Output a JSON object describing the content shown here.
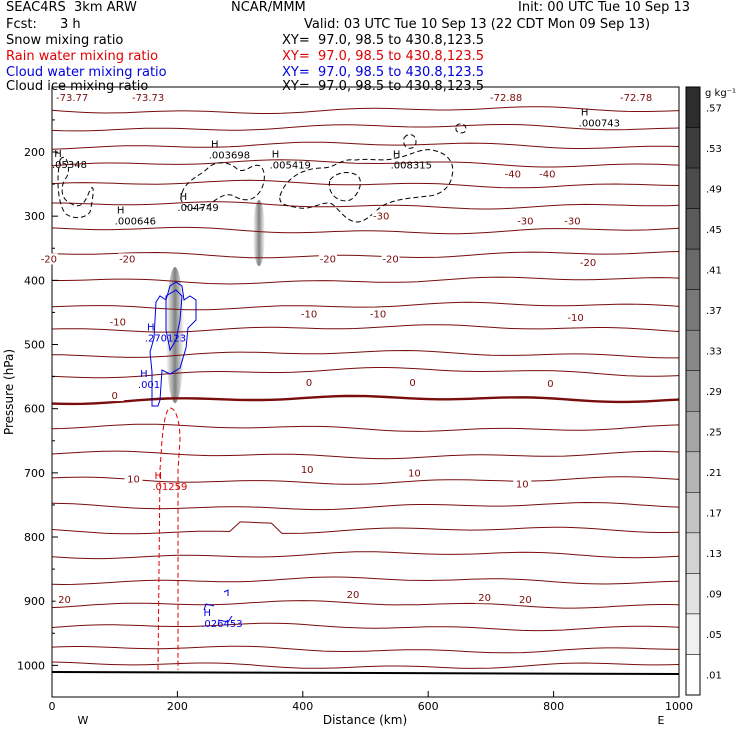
{
  "header": {
    "model": "SEAC4RS  3km ARW",
    "org": "NCAR/MMM",
    "init": "Init: 00 UTC Tue 10 Sep 13",
    "fcst_label": "Fcst:",
    "fcst_value": "3 h",
    "valid": "Valid: 03 UTC Tue 10 Sep 13 (22 CDT Mon 09 Sep 13)"
  },
  "fields": [
    {
      "name": "Snow mixing ratio",
      "xy": "XY=  97.0, 98.5 to 430.8,123.5",
      "color": "#000000"
    },
    {
      "name": "Rain water mixing ratio",
      "xy": "XY=  97.0, 98.5 to 430.8,123.5",
      "color": "#e00000"
    },
    {
      "name": "Cloud water mixing ratio",
      "xy": "XY=  97.0, 98.5 to 430.8,123.5",
      "color": "#0000e0"
    },
    {
      "name": "Cloud ice mixing ratio",
      "xy": "XY=  97.0, 98.5 to 430.8,123.5",
      "color": "#000000"
    }
  ],
  "colors": {
    "temperature": "#7a0c0c",
    "rain": "#e00000",
    "cloud_water": "#0000e0",
    "snow": "#000000"
  },
  "chart_data": {
    "type": "cross-section",
    "xlabel": "Distance (km)",
    "ylabel": "Pressure (hPa)",
    "x_ticks": [
      0,
      200,
      400,
      600,
      800,
      1000
    ],
    "y_ticks": [
      200,
      300,
      400,
      500,
      600,
      700,
      800,
      900,
      1000
    ],
    "xlim": [
      0,
      1000
    ],
    "ylim": [
      1020,
      100
    ],
    "edge_labels": {
      "west": "W",
      "east": "E"
    },
    "colorbar": {
      "unit": "g kg⁻¹",
      "ticks": [
        ".57",
        ".53",
        ".49",
        ".45",
        ".41",
        ".37",
        ".33",
        ".29",
        ".25",
        ".21",
        ".17",
        ".13",
        ".09",
        ".05",
        ".01"
      ]
    },
    "top_row_labels": [
      "-73.77",
      "-73.73",
      "-72.88",
      "-72.78"
    ],
    "temperature_contour_labels": [
      {
        "text": "-40",
        "x": 735,
        "p": 240
      },
      {
        "text": "-40",
        "x": 790,
        "p": 240
      },
      {
        "text": "-30",
        "x": 525,
        "p": 305
      },
      {
        "text": "-30",
        "x": 755,
        "p": 313
      },
      {
        "text": "-30",
        "x": 830,
        "p": 313
      },
      {
        "text": "-20",
        "x": -5,
        "p": 372
      },
      {
        "text": "-20",
        "x": 120,
        "p": 372
      },
      {
        "text": "-20",
        "x": 440,
        "p": 372
      },
      {
        "text": "-20",
        "x": 540,
        "p": 372
      },
      {
        "text": "-20",
        "x": 855,
        "p": 378
      },
      {
        "text": "-10",
        "x": 105,
        "p": 470
      },
      {
        "text": "-10",
        "x": 410,
        "p": 458
      },
      {
        "text": "-10",
        "x": 520,
        "p": 458
      },
      {
        "text": "-10",
        "x": 835,
        "p": 463
      },
      {
        "text": "0",
        "x": 100,
        "p": 585
      },
      {
        "text": "0",
        "x": 410,
        "p": 565
      },
      {
        "text": "0",
        "x": 575,
        "p": 565
      },
      {
        "text": "0",
        "x": 795,
        "p": 566
      },
      {
        "text": "10",
        "x": 130,
        "p": 715
      },
      {
        "text": "10",
        "x": 407,
        "p": 700
      },
      {
        "text": "10",
        "x": 578,
        "p": 706
      },
      {
        "text": "10",
        "x": 750,
        "p": 723
      },
      {
        "text": "20",
        "x": 20,
        "p": 903
      },
      {
        "text": "20",
        "x": 480,
        "p": 895
      },
      {
        "text": "20",
        "x": 690,
        "p": 900
      },
      {
        "text": "20",
        "x": 755,
        "p": 903
      }
    ],
    "highs": [
      {
        "text": ".05348",
        "x": 0,
        "p": 225,
        "color": "#000000"
      },
      {
        "text": ".000646",
        "x": 100,
        "p": 313,
        "color": "#000000"
      },
      {
        "text": ".004749",
        "x": 200,
        "p": 292,
        "color": "#000000"
      },
      {
        "text": ".003698",
        "x": 250,
        "p": 210,
        "color": "#000000"
      },
      {
        "text": ".005419",
        "x": 347,
        "p": 226,
        "color": "#000000"
      },
      {
        "text": ".008315",
        "x": 540,
        "p": 226,
        "color": "#000000"
      },
      {
        "text": ".000743",
        "x": 840,
        "p": 160,
        "color": "#000000"
      },
      {
        "text": ".270123",
        "x": 148,
        "p": 495,
        "color": "#0000e0"
      },
      {
        "text": ".001",
        "x": 137,
        "p": 568,
        "color": "#0000e0"
      },
      {
        "text": ".01259",
        "x": 160,
        "p": 727,
        "color": "#e00000"
      },
      {
        "text": ".026453",
        "x": 238,
        "p": 940,
        "color": "#0000e0"
      }
    ]
  }
}
